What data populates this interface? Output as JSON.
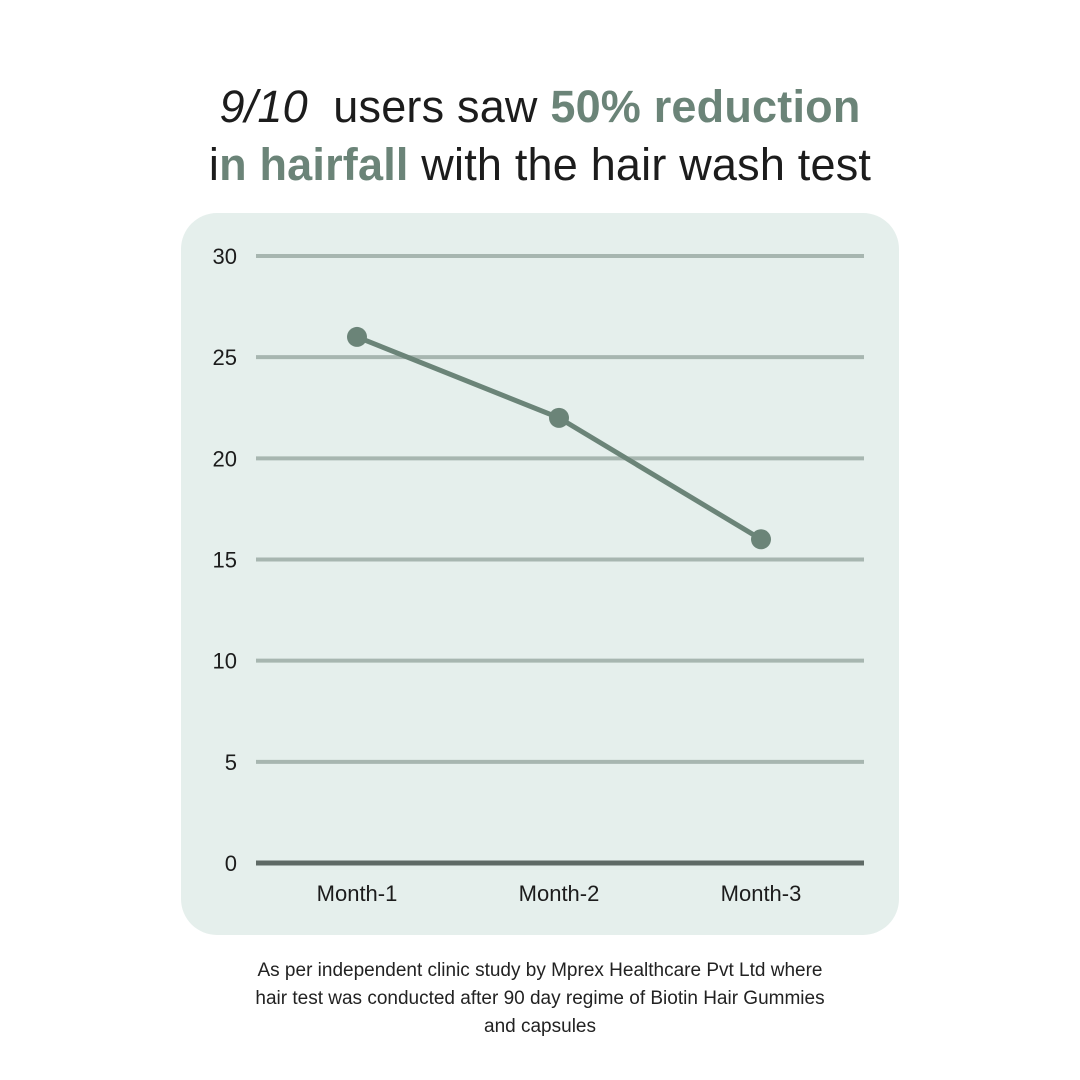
{
  "headline": {
    "part1": "9/10",
    "part2": "  users saw ",
    "part3": "50% reduction",
    "part4": "i",
    "part5": "n hairfall",
    "part6": " with the hair wash test"
  },
  "colors": {
    "accent": "#6b8478",
    "card_background": "#e5efec",
    "gridline": "#a7b6b0",
    "baseline": "#5f6a66",
    "text": "#1c1c1c"
  },
  "chart_data": {
    "type": "line",
    "categories": [
      "Month-1",
      "Month-2",
      "Month-3"
    ],
    "series": [
      {
        "values": [
          26,
          22,
          16
        ]
      }
    ],
    "ylim": [
      0,
      30
    ],
    "yticks": [
      0,
      5,
      10,
      15,
      20,
      25,
      30
    ],
    "grid": true
  },
  "footnote": {
    "line1": "As per independent clinic study by Mprex Healthcare Pvt Ltd where",
    "line2": "hair test was conducted after 90 day regime of Biotin Hair Gummies",
    "line3": "and capsules"
  }
}
